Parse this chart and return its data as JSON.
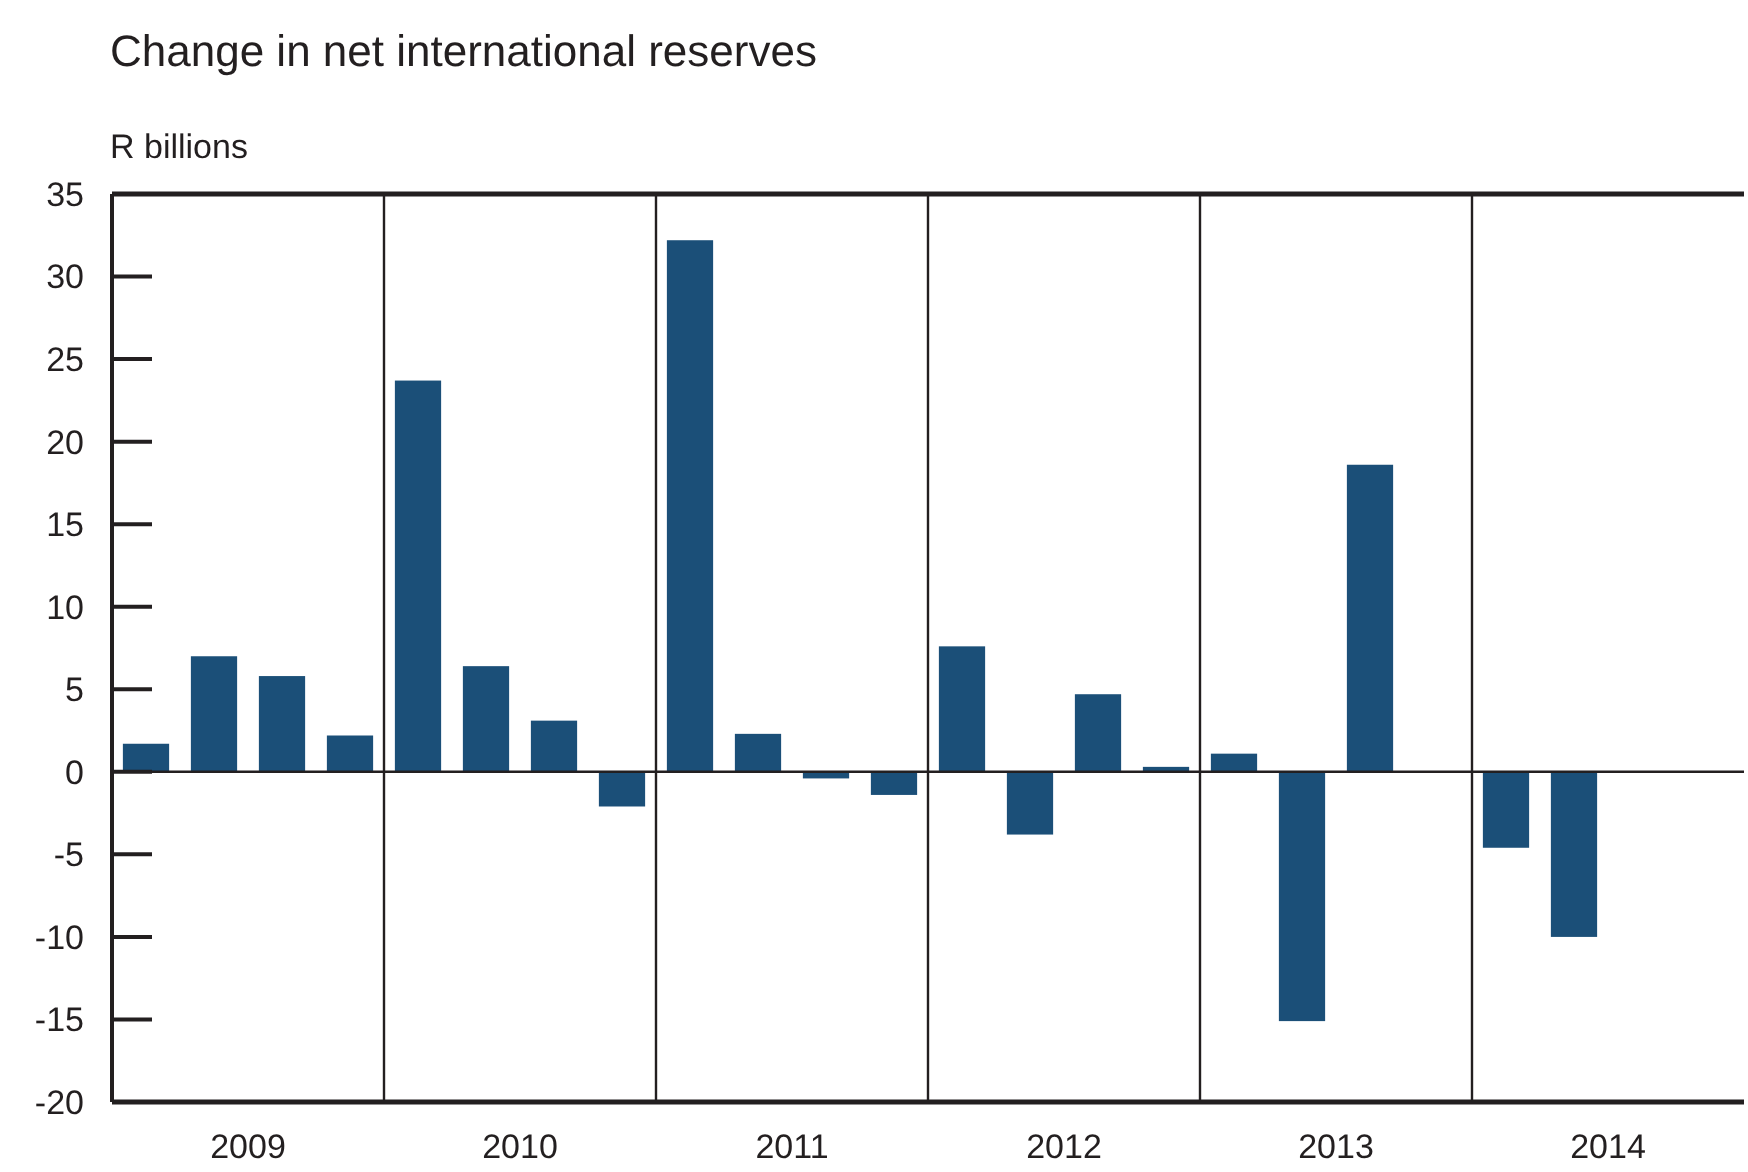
{
  "chart_data": {
    "type": "bar",
    "title": "Change in net international reserves",
    "ylabel": "R billions",
    "x": [
      2009.125,
      2009.375,
      2009.625,
      2009.875,
      2010.125,
      2010.375,
      2010.625,
      2010.875,
      2011.125,
      2011.375,
      2011.625,
      2011.875,
      2012.125,
      2012.375,
      2012.625,
      2012.875,
      2013.125,
      2013.375,
      2013.625,
      2014.125,
      2014.375
    ],
    "values": [
      1.7,
      7.0,
      5.8,
      2.2,
      23.7,
      6.4,
      3.1,
      -2.1,
      32.2,
      2.3,
      -0.4,
      -1.4,
      7.6,
      -3.8,
      4.7,
      0.3,
      1.1,
      -15.1,
      18.6,
      -4.6,
      -10.0
    ],
    "color": "#1b4f78",
    "xlim": [
      2009,
      2015
    ],
    "xticks": [
      {
        "value": 2009.5,
        "label": "2009"
      },
      {
        "value": 2010,
        "label": null
      },
      {
        "value": 2010.5,
        "label": "2010"
      },
      {
        "value": 2011,
        "label": null
      },
      {
        "value": 2011.5,
        "label": "2011"
      },
      {
        "value": 2012,
        "label": null
      },
      {
        "value": 2012.5,
        "label": "2012"
      },
      {
        "value": 2013,
        "label": null
      },
      {
        "value": 2013.5,
        "label": "2013"
      },
      {
        "value": 2014,
        "label": null
      },
      {
        "value": 2014.5,
        "label": "2014"
      }
    ],
    "grid": true,
    "ylim": [
      -20,
      35
    ],
    "yticks": [
      -20,
      -15,
      -10,
      -5,
      0,
      5,
      10,
      15,
      20,
      25,
      30,
      35
    ]
  }
}
